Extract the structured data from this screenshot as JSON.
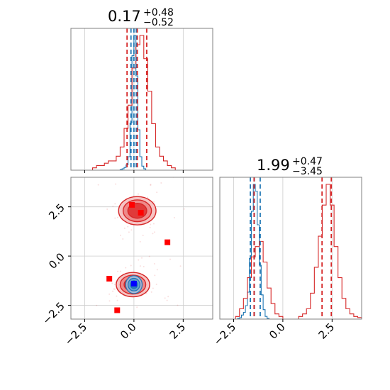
{
  "colors": {
    "blue": "#1f77b4",
    "red": "#d62728",
    "marker_red": "#ff0000",
    "marker_blue": "#0000ff",
    "grid": "#cccccc",
    "frame": "#808080"
  },
  "chart_data": {
    "type": "corner",
    "parameters": [
      "",
      ""
    ],
    "titles": [
      {
        "median": "0.17",
        "plus": "+0.48",
        "minus": "−0.52"
      },
      {
        "median": "1.99",
        "plus": "+0.47",
        "minus": "−3.45"
      }
    ],
    "axis_range": [
      -3.2,
      4.0
    ],
    "ticks": [
      -2.5,
      0.0,
      2.5
    ],
    "tick_labels": [
      "−2.5",
      "0.0",
      "2.5"
    ],
    "grid": true,
    "series": [
      {
        "color": "blue",
        "x_quantiles": [
          -0.15,
          0.0,
          0.12
        ],
        "y_quantiles": [
          -1.65,
          -1.45,
          -1.15
        ],
        "x_histogram": {
          "bins": [
            -0.7,
            -0.6,
            -0.5,
            -0.4,
            -0.3,
            -0.2,
            -0.1,
            0.0,
            0.1,
            0.2,
            0.3,
            0.4,
            0.5
          ],
          "counts": [
            0.5,
            1,
            2,
            4,
            10,
            35,
            85,
            100,
            70,
            30,
            10,
            3,
            1
          ]
        },
        "y_histogram": {
          "bins": [
            -2.3,
            -2.2,
            -2.1,
            -2.0,
            -1.9,
            -1.8,
            -1.7,
            -1.6,
            -1.5,
            -1.4,
            -1.3,
            -1.2,
            -1.1,
            -1.0,
            -0.9,
            -0.8
          ],
          "counts": [
            0.5,
            1,
            3,
            5,
            10,
            20,
            45,
            80,
            100,
            95,
            70,
            40,
            18,
            7,
            2,
            0.5
          ]
        }
      },
      {
        "color": "red",
        "x_quantiles": [
          -0.35,
          0.17,
          0.65
        ],
        "y_quantiles": [
          -1.46,
          1.99,
          2.46
        ],
        "x_histogram": {
          "bins": [
            -2.1,
            -1.9,
            -1.7,
            -1.5,
            -1.3,
            -1.1,
            -0.9,
            -0.7,
            -0.5,
            -0.3,
            -0.1,
            0.1,
            0.3,
            0.5,
            0.7,
            0.9,
            1.1,
            1.3,
            1.5,
            1.7,
            1.9
          ],
          "counts": [
            0.5,
            1,
            1,
            1.5,
            2,
            2,
            3,
            5,
            9,
            14,
            22,
            27,
            29,
            24,
            17,
            10,
            5,
            3,
            2,
            1,
            0.5
          ]
        },
        "y_histogram": {
          "bins": [
            -2.4,
            -2.2,
            -2.0,
            -1.8,
            -1.6,
            -1.4,
            -1.2,
            -1.0,
            -0.8,
            -0.6,
            -0.4,
            -0.2,
            0.0,
            0.2,
            0.4,
            0.6,
            0.8,
            1.0,
            1.2,
            1.4,
            1.6,
            1.8,
            2.0,
            2.2,
            2.4,
            2.6,
            2.8,
            3.0,
            3.2,
            3.4,
            3.6,
            3.8
          ],
          "counts": [
            0.5,
            2,
            4,
            8,
            12,
            14,
            15,
            11,
            6,
            3,
            1,
            0.5,
            0,
            0,
            0,
            0,
            0.5,
            1,
            2,
            5,
            10,
            16,
            22,
            26,
            22,
            14,
            8,
            4,
            2,
            1,
            0.5,
            0.3
          ]
        }
      }
    ],
    "markers": [
      {
        "color": "marker_red",
        "x": -0.1,
        "y": 2.6
      },
      {
        "color": "marker_red",
        "x": 0.35,
        "y": 2.2
      },
      {
        "color": "marker_red",
        "x": 1.7,
        "y": 0.7
      },
      {
        "color": "marker_red",
        "x": -1.25,
        "y": -1.15
      },
      {
        "color": "marker_red",
        "x": -0.85,
        "y": -2.75
      },
      {
        "color": "marker_blue",
        "x": 0.0,
        "y": -1.4
      }
    ]
  }
}
